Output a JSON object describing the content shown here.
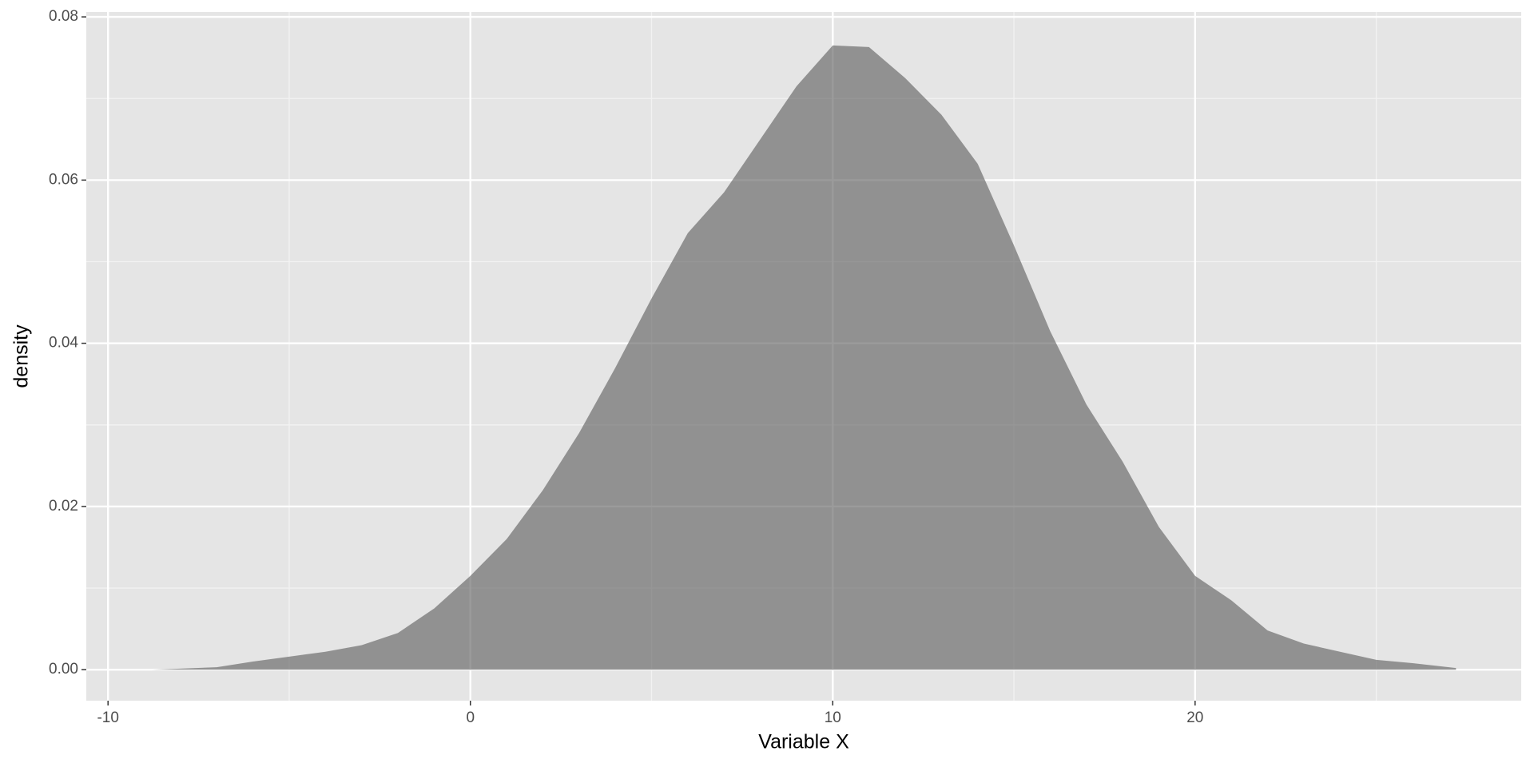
{
  "chart_data": {
    "type": "area",
    "x_label": "Variable X",
    "y_label": "density",
    "x": [
      -8.8,
      -7,
      -6,
      -5,
      -4,
      -3,
      -2,
      -1,
      0,
      1,
      2,
      3,
      4,
      5,
      6,
      7,
      8,
      9,
      10,
      11,
      12,
      13,
      14,
      15,
      16,
      17,
      18,
      19,
      20,
      21,
      22,
      23,
      24,
      25,
      26,
      27.2
    ],
    "values": [
      0,
      0.0003,
      0.001,
      0.0016,
      0.0022,
      0.003,
      0.0045,
      0.0075,
      0.0115,
      0.016,
      0.022,
      0.029,
      0.037,
      0.0455,
      0.0535,
      0.0585,
      0.065,
      0.0715,
      0.0765,
      0.0763,
      0.0725,
      0.068,
      0.062,
      0.052,
      0.0415,
      0.0325,
      0.0255,
      0.0175,
      0.0115,
      0.0085,
      0.0048,
      0.0032,
      0.0022,
      0.0012,
      0.0008,
      0.0002
    ],
    "color": "#595959",
    "alpha": 0.6,
    "xlim": [
      -10.6,
      29.0
    ],
    "xticks": [
      -10,
      0,
      10,
      20
    ],
    "ylim": [
      -0.0038,
      0.0806
    ],
    "yticks": [
      {
        "value": 0,
        "label": "0.00"
      },
      {
        "value": 0.02,
        "label": "0.02"
      },
      {
        "value": 0.04,
        "label": "0.04"
      },
      {
        "value": 0.06,
        "label": "0.06"
      },
      {
        "value": 0.08,
        "label": "0.08"
      }
    ],
    "grid": true
  }
}
